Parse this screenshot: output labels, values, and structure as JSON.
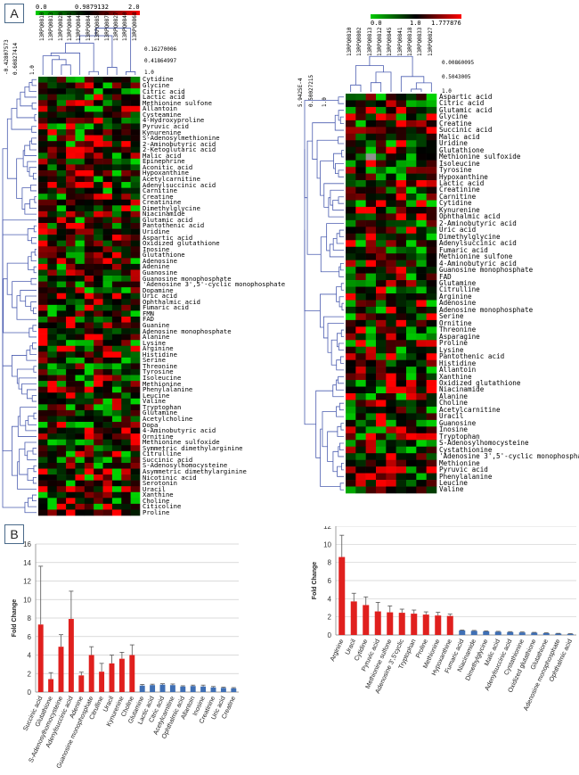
{
  "panel_labels": {
    "a": "A",
    "b": "B"
  },
  "colors": {
    "low": "#00cc00",
    "mid": "#000000",
    "high": "#ff0000",
    "missing": "#909090",
    "bar_up": "#e0201e",
    "bar_down": "#3f6fb4"
  },
  "heatmap_left": {
    "scale": {
      "min": "0.0",
      "mid": "0.9879132",
      "max": "2.0"
    },
    "tree_labels": [
      "0.16270006",
      "0.41864997",
      "1.0"
    ],
    "row_tree_labels": [
      "-0.42807573",
      "0.60827414",
      "1.0"
    ],
    "samples": [
      "13RPQ0810",
      "13RPQ0813",
      "13RPQ0820",
      "13RPQ0841",
      "13RPQ0844",
      "13RPQ0846",
      "13RPQ0859",
      "13RPQ0879",
      "13RPQ0827",
      "13RPQ0840",
      "13RPQ0868"
    ],
    "rows": [
      "Cytidine",
      "Glycine",
      "Citric acid",
      "Lactic acid",
      "Methionine sulfone",
      "Allantoin",
      "Cysteamine",
      "4-Hydroxyproline",
      "Pyruvic acid",
      "Kynurenine",
      "S-Adenosylmethionine",
      "2-Aminobutyric acid",
      "2-Ketoglutaric acid",
      "Malic acid",
      "Epinephrine",
      "Aconitic acid",
      "Hypoxanthine",
      "Acetylcarnitine",
      "Adenylsuccinic acid",
      "Carnitine",
      "Creatine",
      "Creatinine",
      "Dimethylglycine",
      "Niacinamide",
      "Glutamic acid",
      "Pantothenic acid",
      "Uridine",
      "Aspartic acid",
      "Oxidized glutathione",
      "Inosine",
      "Glutathione",
      "Adenosine",
      "Adenine",
      "Guanosine",
      "Guanosine monophosphate",
      "'Adenosine 3',5'-cyclic monophosphate",
      "Dopamine",
      "Uric acid",
      "Ophthalmic acid",
      "Fumaric acid",
      "FMN",
      "FAD",
      "Guanine",
      "Adenosine monophosphate",
      "Alanine",
      "Lysine",
      "Arginine",
      "Histidine",
      "Serine",
      "Threonine",
      "Tyrosine",
      "Isoleucine",
      "Methionine",
      "Phenylalanine",
      "Leucine",
      "Valine",
      "Tryptophan",
      "Glutamine",
      "Acetylcholine",
      "Dopa",
      "4-Aminobutyric acid",
      "Ornitine",
      "Methionine sulfoxide",
      "Symmetric dimethylarginine",
      "Citrulline",
      "Succinic acid",
      "S-Adenosylhomocysteine",
      "Asymmetric dimethylarginine",
      "Nicotinic acid",
      "Serotonin",
      "Uracil",
      "Xanthine",
      "Choline",
      "Citicoline",
      "Proline"
    ]
  },
  "heatmap_right": {
    "scale": {
      "min": "0.0",
      "mid": "1.0",
      "max": "1.777876"
    },
    "tree_labels": [
      "0.00860095",
      "0.5043005",
      "1.0"
    ],
    "row_tree_labels": [
      "5.9425E-4",
      "0.50027215",
      "1.0"
    ],
    "samples": [
      "13RPQ0810",
      "13RPQ0802",
      "13RPQ0813",
      "13RPQ0812",
      "13RPQ0845",
      "13RPQ0841",
      "13RPQ0818",
      "13RPQ0833",
      "13RPQ0827"
    ],
    "rows": [
      "Aspartic acid",
      "Citric acid",
      "Glutamic acid",
      "Glycine",
      "Creatine",
      "Succinic acid",
      "Malic acid",
      "Uridine",
      "Glutathione",
      "Methionine sulfoxide",
      "Isoleucine",
      "Tyrosine",
      "Hypoxanthine",
      "Lactic acid",
      "Creatinine",
      "Carnitine",
      "Cytidine",
      "Kynurenine",
      "Ophthalmic acid",
      "2-Aminobutyric acid",
      "Uric acid",
      "Dimethylglycine",
      "Adenylsuccinic acid",
      "Fumaric acid",
      "Methionine sulfone",
      "4-Aminobutyric acid",
      "Guanosine monophosphate",
      "FAD",
      "Glutamine",
      "Citrulline",
      "Arginine",
      "Adenosine",
      "Adenosine monophosphate",
      "Serine",
      "Ornitine",
      "Threonine",
      "Asparagine",
      "Proline",
      "Lysine",
      "Pantothenic acid",
      "Histidine",
      "Allantoin",
      "Xanthine",
      "Oxidized glutathione",
      "Niacinamide",
      "Alanine",
      "Choline",
      "Acetylcarnitine",
      "Uracil",
      "Guanosine",
      "Inosine",
      "Tryptophan",
      "S-Adenosylhomocysteine",
      "Cystathionine",
      "'Adenosine 3',5'-cyclic monophospha",
      "Methionine",
      "Pyruvic acid",
      "Phenylalanine",
      "Leucine",
      "Valine"
    ]
  },
  "chart_data": [
    {
      "type": "bar",
      "title": "",
      "xlabel": "",
      "ylabel": "Fold Change",
      "ylim": [
        0,
        16
      ],
      "yticks": [
        0,
        2,
        4,
        6,
        8,
        10,
        12,
        14,
        16
      ],
      "categories": [
        "Succinic acid",
        "Glutathione",
        "S-Adenosylhomocysteine",
        "Adenylsuccinic acid",
        "Adenine",
        "Guanosine monophosphate",
        "Citrulline",
        "Uracil",
        "Kynurenine",
        "Choline",
        "Glutamine",
        "Lactic acid",
        "Citric acid",
        "Acetylcarnitine",
        "Ophthalmic acid",
        "Allantoin",
        "Inosine",
        "Creatinine",
        "Uric acid",
        "Creatine"
      ],
      "values": [
        7.3,
        1.4,
        4.9,
        7.9,
        1.8,
        4.0,
        2.2,
        3.1,
        3.6,
        4.0,
        0.7,
        0.75,
        0.8,
        0.75,
        0.6,
        0.65,
        0.6,
        0.5,
        0.45,
        0.4
      ],
      "errors": [
        6.3,
        0.7,
        1.3,
        3.0,
        0.35,
        0.9,
        0.9,
        0.9,
        0.7,
        1.1,
        0.12,
        0.1,
        0.1,
        0.12,
        0.08,
        0.1,
        0.15,
        0.1,
        0.08,
        0.08
      ],
      "groups": [
        "up",
        "up",
        "up",
        "up",
        "up",
        "up",
        "up",
        "up",
        "up",
        "up",
        "down",
        "down",
        "down",
        "down",
        "down",
        "down",
        "down",
        "down",
        "down",
        "down"
      ]
    },
    {
      "type": "bar",
      "title": "",
      "xlabel": "",
      "ylabel": "Fold Change",
      "ylim": [
        0,
        12
      ],
      "yticks": [
        0,
        2,
        4,
        6,
        8,
        10,
        12
      ],
      "categories": [
        "Arginine",
        "Uracil",
        "Cytidine",
        "Pyruvic acid",
        "Methionine sulfone",
        "Adenosine 3',5'cyclic",
        "Tryptophan",
        "Proline",
        "Methionine",
        "Hypoxanthine",
        "Fumaric acid",
        "Niacinamide",
        "Dimethylglycine",
        "Malic acid",
        "Adenylsuccinic acid",
        "Cystathionine",
        "Oxidized glutathione",
        "Glutathione",
        "Adenosine monophosphate",
        "Ophthalmic acid"
      ],
      "values": [
        8.6,
        3.7,
        3.3,
        2.6,
        2.5,
        2.45,
        2.35,
        2.25,
        2.15,
        2.1,
        0.5,
        0.45,
        0.4,
        0.35,
        0.32,
        0.28,
        0.25,
        0.2,
        0.15,
        0.12
      ],
      "errors": [
        2.4,
        0.9,
        0.9,
        1.0,
        0.7,
        0.4,
        0.4,
        0.3,
        0.35,
        0.2,
        0.05,
        0.05,
        0.05,
        0.05,
        0.05,
        0.05,
        0.04,
        0.04,
        0.03,
        0.03
      ],
      "groups": [
        "up",
        "up",
        "up",
        "up",
        "up",
        "up",
        "up",
        "up",
        "up",
        "up",
        "down",
        "down",
        "down",
        "down",
        "down",
        "down",
        "down",
        "down",
        "down",
        "down"
      ]
    }
  ]
}
